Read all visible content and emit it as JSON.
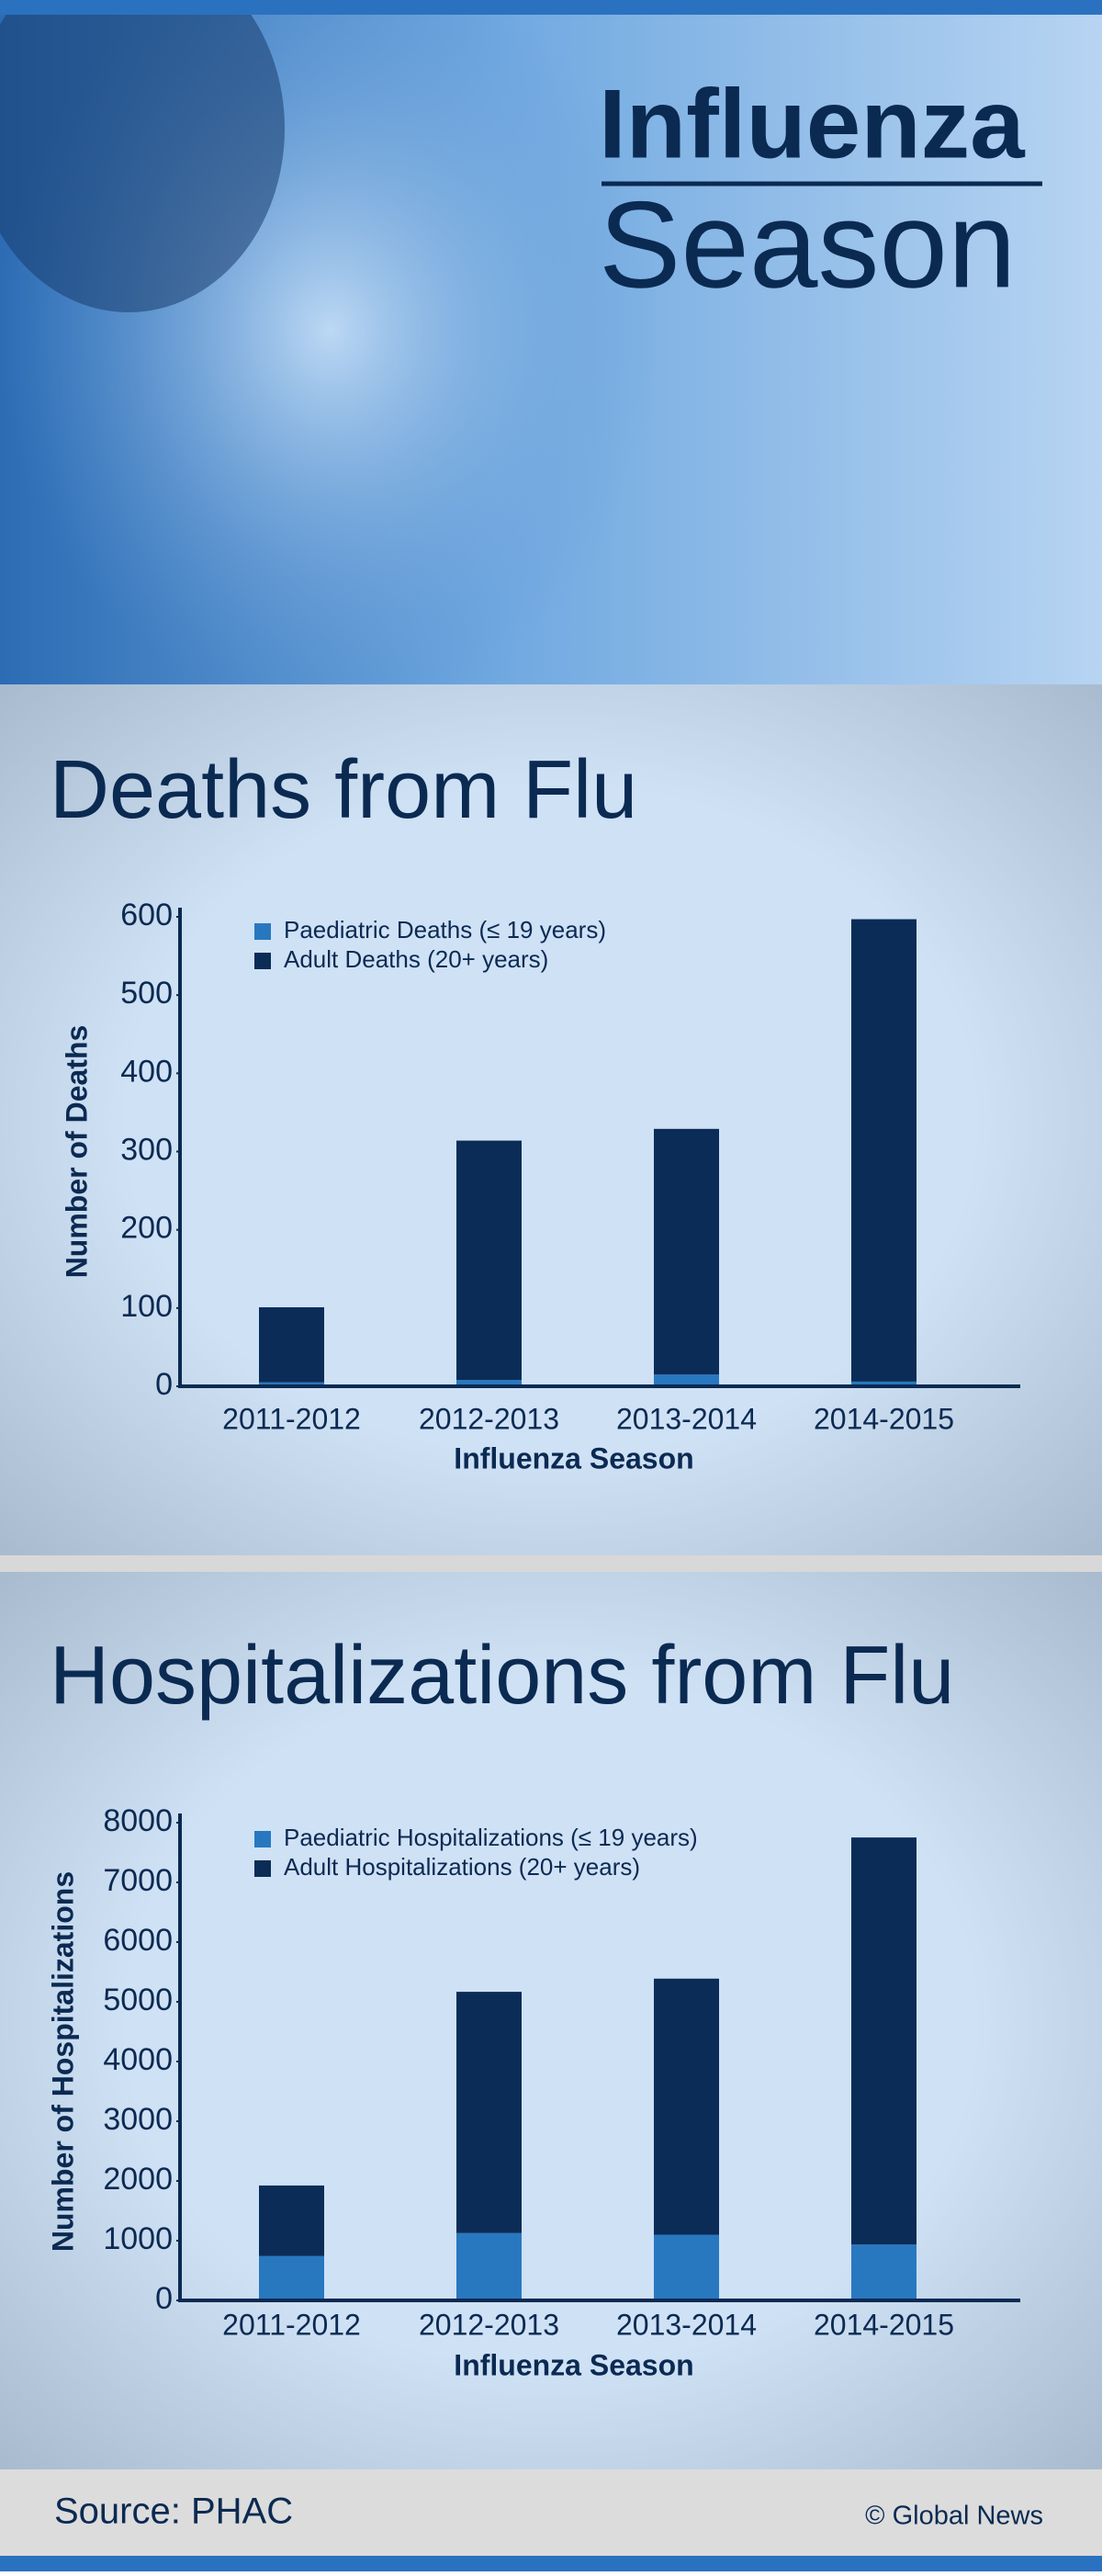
{
  "header": {
    "title_line1": "Influenza",
    "title_line2": "Season"
  },
  "chart_data": [
    {
      "type": "bar",
      "stacked": true,
      "title": "Deaths from Flu",
      "x_label": "Influenza Season",
      "y_label": "Number of Deaths",
      "categories": [
        "2011-2012",
        "2012-2013",
        "2013-2014",
        "2014-2015"
      ],
      "series": [
        {
          "name": "Paediatric Deaths (≤ 19 years)",
          "color": "#2878c0",
          "values": [
            5,
            8,
            15,
            6
          ]
        },
        {
          "name": "Adult Deaths (20+ years)",
          "color": "#0a2c57",
          "values": [
            96,
            306,
            314,
            591
          ]
        }
      ],
      "ylim": [
        0,
        600
      ],
      "yticks": [
        0,
        100,
        200,
        300,
        400,
        500,
        600
      ],
      "grid": false,
      "legend": "top-left"
    },
    {
      "type": "bar",
      "stacked": true,
      "title": "Hospitalizations from Flu",
      "x_label": "Influenza Season",
      "y_label": "Number of Hospitalizations",
      "categories": [
        "2011-2012",
        "2012-2013",
        "2013-2014",
        "2014-2015"
      ],
      "series": [
        {
          "name": "Paediatric Hospitalizations (≤ 19 years)",
          "color": "#2878c0",
          "values": [
            742,
            1127,
            1100,
            935
          ]
        },
        {
          "name": "Adult Hospitalizations (20+ years)",
          "color": "#0a2c57",
          "values": [
            1182,
            4041,
            4288,
            6817
          ]
        }
      ],
      "ylim": [
        0,
        8000
      ],
      "yticks": [
        0,
        1000,
        2000,
        3000,
        4000,
        5000,
        6000,
        7000,
        8000
      ],
      "grid": false,
      "legend": "top-left"
    }
  ],
  "footer": {
    "source": "Source: PHAC",
    "credit": "© Global News"
  }
}
